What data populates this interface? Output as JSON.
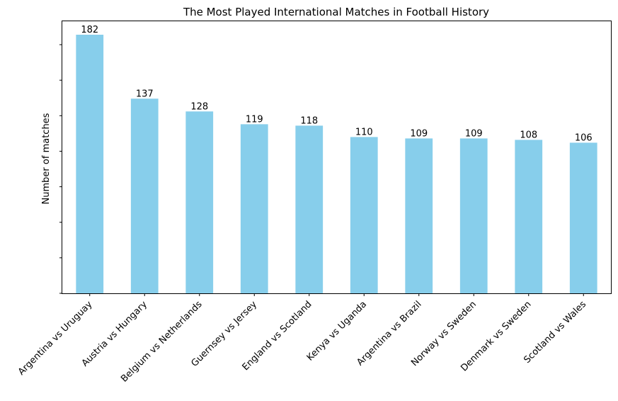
{
  "chart_data": {
    "type": "bar",
    "title": "The Most Played International Matches in Football History",
    "xlabel": "",
    "ylabel": "Number of matches",
    "categories": [
      "Argentina vs Uruguay",
      "Austria vs Hungary",
      "Belgium vs Netherlands",
      "Guernsey vs Jersey",
      "England vs Scotland",
      "Kenya vs Uganda",
      "Argentina vs Brazil",
      "Norway vs Sweden",
      "Denmark vs Sweden",
      "Scotland vs Wales"
    ],
    "values": [
      182,
      137,
      128,
      119,
      118,
      110,
      109,
      109,
      108,
      106
    ],
    "data_labels": [
      "182",
      "137",
      "128",
      "119",
      "118",
      "110",
      "109",
      "109",
      "108",
      "106"
    ],
    "ylim": [
      0,
      182
    ],
    "y_ticks": [
      0,
      25,
      50,
      75,
      100,
      125,
      150,
      175
    ],
    "y_tick_labels_visible": false,
    "x_tick_rotation": 45,
    "bar_color": "#87CEEB",
    "grid": false,
    "legend": "none"
  }
}
